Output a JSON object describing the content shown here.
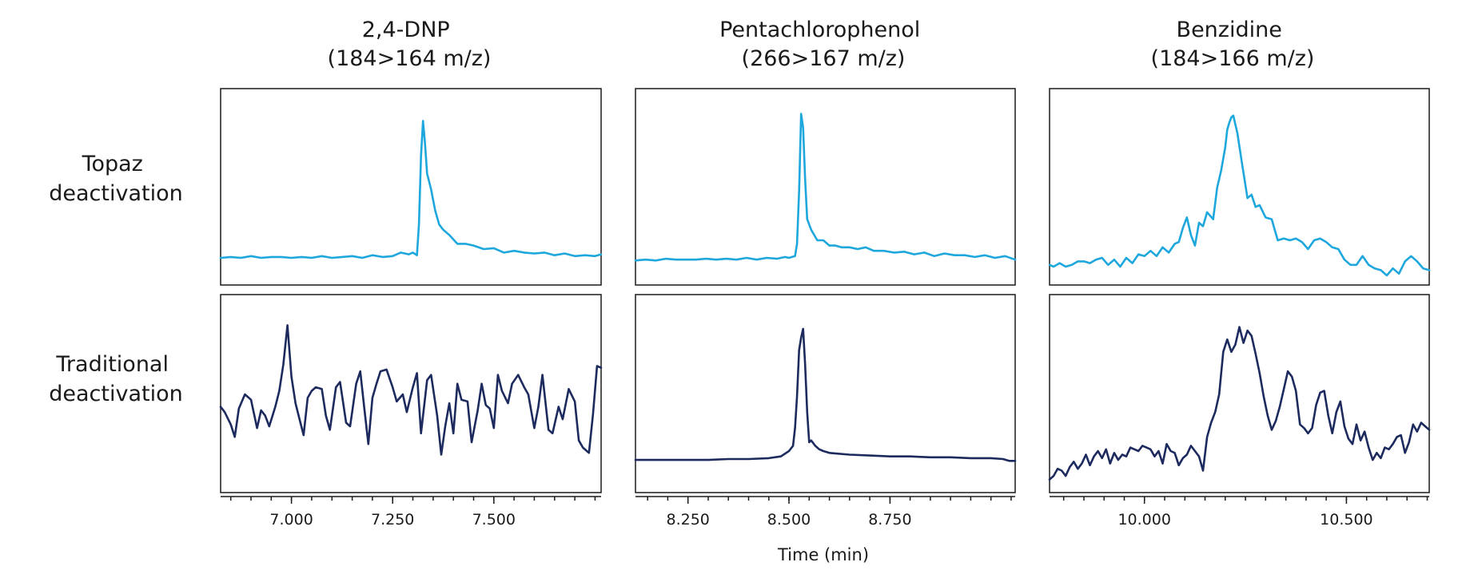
{
  "chart_data": {
    "type": "line",
    "xlabel": "Time (min)",
    "ylabel": "",
    "grid": false,
    "legend": "none",
    "rows": [
      {
        "key": "topaz",
        "label_lines": [
          "Topaz",
          "deactivation"
        ],
        "color": "#1ea7dd"
      },
      {
        "key": "traditional",
        "label_lines": [
          "Traditional",
          "deactivation"
        ],
        "color": "#1c2a5e"
      }
    ],
    "panels": [
      {
        "title_lines": [
          "2,4-DNP",
          "(184>164 m/z)"
        ],
        "xlim": [
          6.825,
          7.765
        ],
        "ticks": [
          7.0,
          7.25,
          7.5
        ],
        "tick_labels": [
          "7.000",
          "7.250",
          "7.500"
        ],
        "minor_step": 0.05,
        "series": {
          "topaz": {
            "ylim": [
              0,
              100
            ],
            "x": [
              6.825,
              6.85,
              6.875,
              6.9,
              6.925,
              6.95,
              6.975,
              7.0,
              7.025,
              7.05,
              7.075,
              7.1,
              7.125,
              7.15,
              7.175,
              7.2,
              7.225,
              7.25,
              7.27,
              7.29,
              7.3,
              7.31,
              7.315,
              7.32,
              7.325,
              7.33,
              7.335,
              7.345,
              7.355,
              7.365,
              7.375,
              7.39,
              7.41,
              7.43,
              7.45,
              7.475,
              7.5,
              7.525,
              7.55,
              7.575,
              7.6,
              7.625,
              7.65,
              7.675,
              7.7,
              7.725,
              7.75,
              7.765
            ],
            "y": [
              10,
              10.5,
              10,
              11,
              10,
              10.5,
              10.5,
              10,
              10.5,
              10,
              11,
              10,
              10.5,
              11,
              10,
              11.5,
              10.5,
              11,
              13,
              12,
              13,
              11.5,
              29,
              68,
              88,
              75,
              58,
              49,
              37,
              29,
              26,
              23,
              18,
              18,
              17,
              15,
              15.5,
              13,
              14,
              13,
              12.5,
              13,
              11.5,
              12.5,
              11,
              11.5,
              11,
              12
            ]
          },
          "traditional": {
            "ylim": [
              0,
              100
            ],
            "x": [
              6.825,
              6.835,
              6.85,
              6.86,
              6.87,
              6.885,
              6.9,
              6.915,
              6.925,
              6.935,
              6.945,
              6.96,
              6.97,
              6.98,
              6.99,
              7.0,
              7.01,
              7.02,
              7.03,
              7.04,
              7.05,
              7.06,
              7.075,
              7.085,
              7.095,
              7.11,
              7.12,
              7.135,
              7.145,
              7.16,
              7.17,
              7.18,
              7.19,
              7.2,
              7.21,
              7.22,
              7.235,
              7.25,
              7.26,
              7.275,
              7.285,
              7.3,
              7.31,
              7.32,
              7.335,
              7.345,
              7.36,
              7.37,
              7.38,
              7.39,
              7.4,
              7.41,
              7.42,
              7.435,
              7.445,
              7.46,
              7.47,
              7.48,
              7.49,
              7.5,
              7.51,
              7.52,
              7.535,
              7.545,
              7.56,
              7.575,
              7.585,
              7.6,
              7.61,
              7.62,
              7.635,
              7.645,
              7.66,
              7.67,
              7.685,
              7.7,
              7.71,
              7.72,
              7.735,
              7.745,
              7.755,
              7.765
            ],
            "y": [
              43,
              40,
              33,
              26,
              42,
              50,
              47,
              31,
              41,
              38,
              32,
              43,
              52,
              67,
              89,
              60,
              45,
              36,
              27,
              48,
              52,
              54,
              53,
              38,
              30,
              54,
              57,
              34,
              32,
              56,
              63,
              42,
              22,
              48,
              56,
              63,
              64,
              54,
              46,
              50,
              40,
              54,
              62,
              28,
              58,
              61,
              38,
              16,
              32,
              45,
              28,
              56,
              47,
              46,
              23,
              41,
              56,
              44,
              42,
              31,
              61,
              52,
              45,
              56,
              61,
              54,
              50,
              31,
              43,
              61,
              30,
              28,
              43,
              36,
              53,
              46,
              24,
              20,
              17,
              39,
              66,
              65
            ]
          }
        }
      },
      {
        "title_lines": [
          "Pentachlorophenol",
          "(266>167 m/z)"
        ],
        "xlim": [
          8.12,
          9.06
        ],
        "ticks": [
          8.25,
          8.5,
          8.75
        ],
        "tick_labels": [
          "8.250",
          "8.500",
          "8.750"
        ],
        "minor_step": 0.05,
        "series": {
          "topaz": {
            "ylim": [
              0,
              100
            ],
            "x": [
              8.12,
              8.145,
              8.17,
              8.195,
              8.22,
              8.245,
              8.27,
              8.295,
              8.32,
              8.345,
              8.37,
              8.395,
              8.42,
              8.445,
              8.47,
              8.49,
              8.5,
              8.515,
              8.52,
              8.525,
              8.53,
              8.535,
              8.54,
              8.545,
              8.555,
              8.57,
              8.585,
              8.6,
              8.615,
              8.63,
              8.65,
              8.67,
              8.69,
              8.71,
              8.735,
              8.76,
              8.785,
              8.81,
              8.835,
              8.86,
              8.885,
              8.91,
              8.935,
              8.96,
              8.985,
              9.01,
              9.035,
              9.06
            ],
            "y": [
              8.5,
              9,
              8.5,
              9.5,
              9,
              9,
              9,
              9.5,
              9,
              9.5,
              9,
              10,
              9,
              10,
              9.5,
              10.5,
              10,
              11,
              18,
              48,
              92,
              84,
              55,
              32,
              26,
              20,
              20,
              17,
              17,
              16,
              16,
              15,
              16,
              14,
              14,
              13,
              13.5,
              12,
              13,
              11,
              12.5,
              11.5,
              11.5,
              10.5,
              11.5,
              10,
              11,
              9
            ]
          },
          "traditional": {
            "ylim": [
              0,
              100
            ],
            "x": [
              8.12,
              8.15,
              8.2,
              8.25,
              8.3,
              8.35,
              8.4,
              8.45,
              8.48,
              8.5,
              8.51,
              8.515,
              8.52,
              8.525,
              8.53,
              8.535,
              8.54,
              8.545,
              8.55,
              8.555,
              8.565,
              8.575,
              8.585,
              8.6,
              8.625,
              8.65,
              8.7,
              8.75,
              8.8,
              8.85,
              8.9,
              8.95,
              9.0,
              9.03,
              9.045,
              9.06
            ],
            "y": [
              13,
              13,
              13,
              13,
              13,
              13.5,
              13.5,
              14,
              15,
              18,
              21,
              31,
              49,
              75,
              82,
              87,
              67,
              40,
              23,
              24,
              21,
              19,
              18,
              17,
              16.5,
              16,
              15.5,
              15,
              15,
              14.5,
              14.5,
              14,
              14,
              13.5,
              12.5,
              12.5
            ]
          }
        }
      },
      {
        "title_lines": [
          "Benzidine",
          "(184>166 m/z)"
        ],
        "xlim": [
          9.765,
          10.705
        ],
        "ticks": [
          10.0,
          10.5
        ],
        "tick_labels": [
          "10.000",
          "10.500"
        ],
        "minor_step": 0.05,
        "series": {
          "topaz": {
            "ylim": [
              0,
              100
            ],
            "x": [
              9.765,
              9.775,
              9.79,
              9.805,
              9.82,
              9.835,
              9.85,
              9.865,
              9.88,
              9.895,
              9.91,
              9.925,
              9.94,
              9.955,
              9.97,
              9.985,
              10.0,
              10.015,
              10.03,
              10.045,
              10.06,
              10.075,
              10.085,
              10.095,
              10.105,
              10.115,
              10.125,
              10.135,
              10.145,
              10.155,
              10.17,
              10.18,
              10.19,
              10.2,
              10.205,
              10.21,
              10.215,
              10.22,
              10.23,
              10.24,
              10.255,
              10.265,
              10.275,
              10.285,
              10.3,
              10.315,
              10.33,
              10.345,
              10.36,
              10.375,
              10.39,
              10.405,
              10.42,
              10.435,
              10.45,
              10.465,
              10.48,
              10.495,
              10.51,
              10.525,
              10.54,
              10.555,
              10.57,
              10.585,
              10.6,
              10.615,
              10.63,
              10.645,
              10.66,
              10.675,
              10.69,
              10.705
            ],
            "y": [
              6,
              5,
              7,
              5,
              6,
              8,
              8,
              7,
              9,
              10,
              6,
              9,
              5,
              10,
              7,
              12,
              11,
              14,
              11,
              16,
              13,
              18,
              19,
              27,
              33,
              23,
              17,
              30,
              28,
              36,
              32,
              50,
              60,
              73,
              83,
              87,
              90,
              91,
              81,
              66,
              44,
              46,
              39,
              40,
              33,
              32,
              20,
              21,
              20,
              21,
              19,
              15,
              20,
              21,
              19,
              16,
              15,
              9,
              6,
              6,
              11,
              6,
              4,
              3,
              0,
              4,
              1,
              8,
              11,
              8,
              4,
              3
            ]
          },
          "traditional": {
            "ylim": [
              0,
              100
            ],
            "x": [
              9.765,
              9.775,
              9.785,
              9.795,
              9.805,
              9.815,
              9.825,
              9.835,
              9.845,
              9.855,
              9.865,
              9.875,
              9.885,
              9.895,
              9.905,
              9.915,
              9.925,
              9.935,
              9.945,
              9.955,
              9.965,
              9.975,
              9.985,
              9.995,
              10.005,
              10.015,
              10.025,
              10.035,
              10.045,
              10.055,
              10.065,
              10.075,
              10.085,
              10.095,
              10.105,
              10.115,
              10.125,
              10.135,
              10.145,
              10.155,
              10.165,
              10.175,
              10.185,
              10.195,
              10.205,
              10.215,
              10.225,
              10.235,
              10.245,
              10.255,
              10.265,
              10.275,
              10.285,
              10.295,
              10.305,
              10.315,
              10.325,
              10.335,
              10.345,
              10.355,
              10.365,
              10.375,
              10.385,
              10.395,
              10.405,
              10.415,
              10.425,
              10.435,
              10.445,
              10.455,
              10.465,
              10.475,
              10.485,
              10.495,
              10.505,
              10.515,
              10.525,
              10.535,
              10.545,
              10.555,
              10.565,
              10.575,
              10.585,
              10.595,
              10.605,
              10.615,
              10.625,
              10.635,
              10.645,
              10.655,
              10.665,
              10.675,
              10.685,
              10.695,
              10.705
            ],
            "y": [
              2,
              4,
              8,
              7,
              4,
              9,
              12,
              8,
              11,
              16,
              10,
              15,
              18,
              14,
              19,
              11,
              17,
              13,
              16,
              15,
              20,
              19,
              18,
              21,
              20,
              19,
              15,
              18,
              11,
              22,
              18,
              17,
              10,
              14,
              16,
              21,
              18,
              15,
              7,
              26,
              34,
              40,
              50,
              74,
              81,
              74,
              78,
              88,
              79,
              86,
              83,
              73,
              62,
              49,
              38,
              30,
              35,
              43,
              53,
              63,
              60,
              52,
              33,
              31,
              28,
              31,
              44,
              51,
              52,
              38,
              28,
              40,
              46,
              32,
              25,
              22,
              33,
              24,
              29,
              20,
              13,
              17,
              14,
              20,
              19,
              22,
              26,
              27,
              17,
              23,
              33,
              29,
              34,
              32,
              30
            ]
          }
        }
      }
    ]
  }
}
